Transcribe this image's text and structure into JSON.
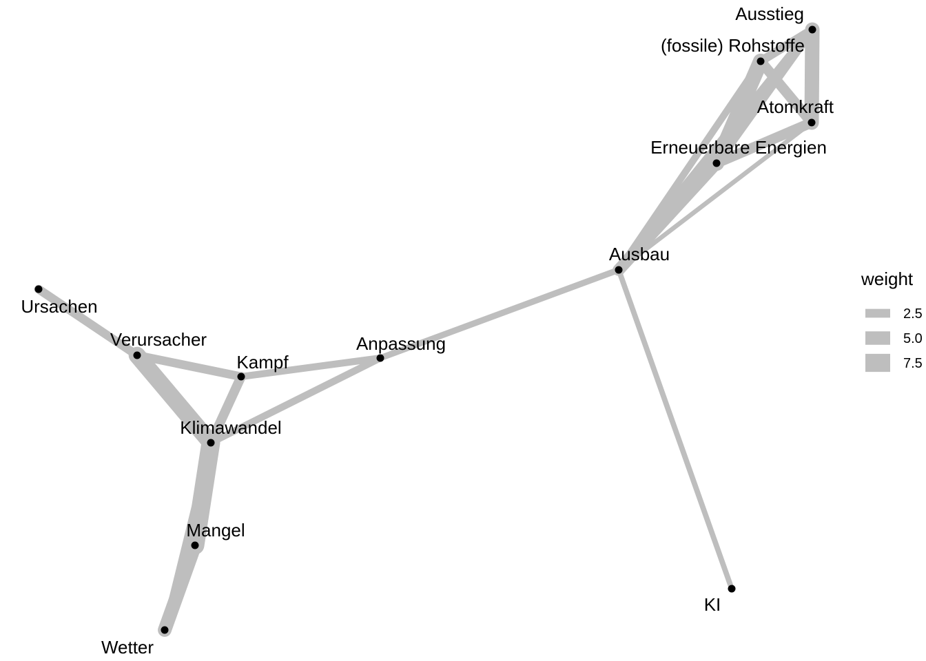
{
  "colors": {
    "edge": "#bebebe",
    "node": "#000000",
    "background": "#ffffff"
  },
  "legend": {
    "title": "weight",
    "entries": [
      {
        "label": "2.5",
        "weight": 2.5
      },
      {
        "label": "5.0",
        "weight": 5.0
      },
      {
        "label": "7.5",
        "weight": 7.5
      }
    ]
  },
  "nodes": [
    {
      "id": "ausstieg",
      "label": "Ausstieg"
    },
    {
      "id": "rohstoffe",
      "label": "(fossile) Rohstoffe"
    },
    {
      "id": "atomkraft",
      "label": "Atomkraft"
    },
    {
      "id": "erneuerbare",
      "label": "Erneuerbare Energien"
    },
    {
      "id": "ausbau",
      "label": "Ausbau"
    },
    {
      "id": "ki",
      "label": "KI"
    },
    {
      "id": "anpassung",
      "label": "Anpassung"
    },
    {
      "id": "kampf",
      "label": "Kampf"
    },
    {
      "id": "verursacher",
      "label": "Verursacher"
    },
    {
      "id": "ursachen",
      "label": "Ursachen"
    },
    {
      "id": "klimawandel",
      "label": "Klimawandel"
    },
    {
      "id": "mangel",
      "label": "Mangel"
    },
    {
      "id": "wetter",
      "label": "Wetter"
    }
  ],
  "edges": [
    {
      "source": "ursachen",
      "target": "verursacher",
      "weight": 4
    },
    {
      "source": "verursacher",
      "target": "kampf",
      "weight": 4
    },
    {
      "source": "verursacher",
      "target": "klimawandel",
      "weight": 9
    },
    {
      "source": "kampf",
      "target": "klimawandel",
      "weight": 4.5
    },
    {
      "source": "kampf",
      "target": "anpassung",
      "weight": 3
    },
    {
      "source": "klimawandel",
      "target": "anpassung",
      "weight": 3
    },
    {
      "source": "klimawandel",
      "target": "mangel",
      "weight": 10
    },
    {
      "source": "mangel",
      "target": "wetter",
      "weight": 7
    },
    {
      "source": "klimawandel",
      "target": "wetter",
      "weight": 3
    },
    {
      "source": "anpassung",
      "target": "ausbau",
      "weight": 2.5
    },
    {
      "source": "ausbau",
      "target": "ki",
      "weight": 2
    },
    {
      "source": "ausbau",
      "target": "erneuerbare",
      "weight": 6
    },
    {
      "source": "ausbau",
      "target": "rohstoffe",
      "weight": 3
    },
    {
      "source": "ausbau",
      "target": "ausstieg",
      "weight": 5
    },
    {
      "source": "ausbau",
      "target": "atomkraft",
      "weight": 1.5
    },
    {
      "source": "erneuerbare",
      "target": "rohstoffe",
      "weight": 8
    },
    {
      "source": "erneuerbare",
      "target": "atomkraft",
      "weight": 5
    },
    {
      "source": "erneuerbare",
      "target": "ausstieg",
      "weight": 4
    },
    {
      "source": "rohstoffe",
      "target": "ausstieg",
      "weight": 4
    },
    {
      "source": "rohstoffe",
      "target": "atomkraft",
      "weight": 5
    },
    {
      "source": "ausstieg",
      "target": "atomkraft",
      "weight": 7.5
    }
  ]
}
